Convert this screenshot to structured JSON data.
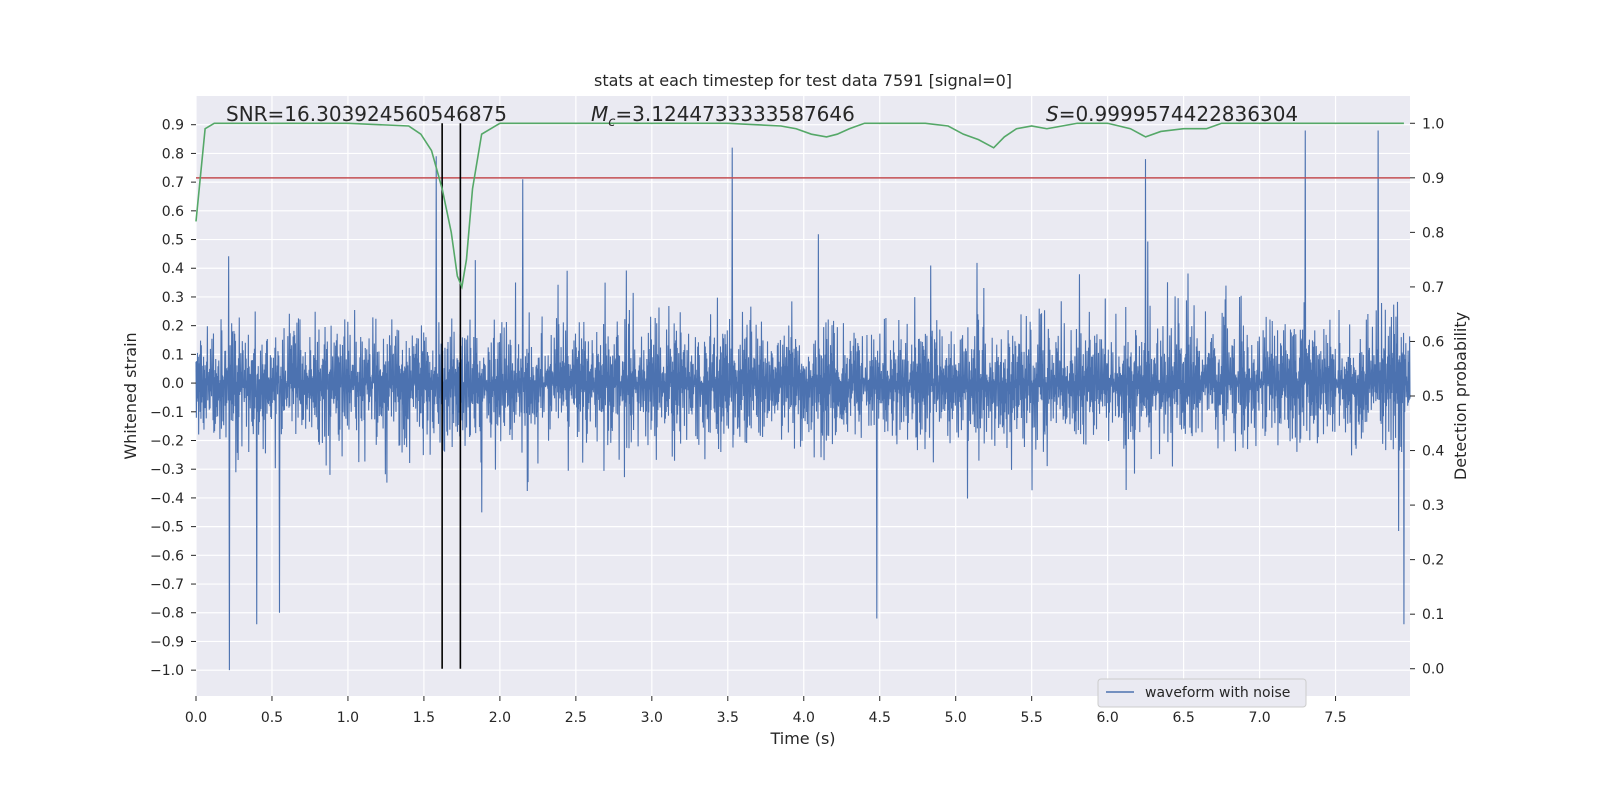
{
  "chart_data": {
    "type": "line",
    "title": "stats at each timestep for test data 7591 [signal=0]",
    "xlabel": "Time (s)",
    "ylabel": "Whitened strain",
    "y2label": "Detection probability",
    "xlim": [
      0.0,
      7.99
    ],
    "ylim": [
      -1.09,
      1.0
    ],
    "y2lim": [
      -0.05,
      1.05
    ],
    "x_ticks": [
      "0.0",
      "0.5",
      "1.0",
      "1.5",
      "2.0",
      "2.5",
      "3.0",
      "3.5",
      "4.0",
      "4.5",
      "5.0",
      "5.5",
      "6.0",
      "6.5",
      "7.0",
      "7.5"
    ],
    "y_ticks": [
      "0.9",
      "0.8",
      "0.7",
      "0.6",
      "0.5",
      "0.4",
      "0.3",
      "0.2",
      "0.1",
      "0.0",
      "−0.1",
      "−0.2",
      "−0.3",
      "−0.4",
      "−0.5",
      "−0.6",
      "−0.7",
      "−0.8",
      "−0.9",
      "−1.0"
    ],
    "y2_ticks": [
      "1.0",
      "0.9",
      "0.8",
      "0.7",
      "0.6",
      "0.5",
      "0.4",
      "0.3",
      "0.2",
      "0.1",
      "0.0"
    ],
    "grid": true,
    "legend_position": "lower-right",
    "annotations": {
      "snr": "SNR=16.303924560546875",
      "mc_prefix": "M",
      "mc_sub": "c",
      "mc_value": "=3.1244733333587646",
      "s_prefix": "S",
      "s_value": "=0.9999574422836304"
    },
    "series": [
      {
        "name": "waveform with noise",
        "kind": "dense-noise",
        "color": "#4c72b0",
        "approx_envelope": [
          -0.55,
          0.55
        ],
        "peaks": [
          {
            "x": 0.22,
            "y": -1.0
          },
          {
            "x": 0.4,
            "y": -0.84
          },
          {
            "x": 0.55,
            "y": -0.8
          },
          {
            "x": 1.58,
            "y": 0.79
          },
          {
            "x": 2.15,
            "y": 0.71
          },
          {
            "x": 3.53,
            "y": 0.82
          },
          {
            "x": 4.48,
            "y": -0.82
          },
          {
            "x": 6.25,
            "y": 0.78
          },
          {
            "x": 7.3,
            "y": 0.88
          },
          {
            "x": 7.78,
            "y": 0.88
          },
          {
            "x": 7.95,
            "y": -0.84
          }
        ]
      },
      {
        "kind": "detection-probability",
        "color": "#55a868",
        "x": [
          0.0,
          0.06,
          0.12,
          0.3,
          1.0,
          1.4,
          1.48,
          1.55,
          1.62,
          1.68,
          1.72,
          1.75,
          1.78,
          1.82,
          1.88,
          2.0,
          2.5,
          3.0,
          3.5,
          3.85,
          3.95,
          4.05,
          4.15,
          4.22,
          4.3,
          4.4,
          4.5,
          4.8,
          4.95,
          5.05,
          5.15,
          5.25,
          5.32,
          5.4,
          5.5,
          5.6,
          5.7,
          5.8,
          6.0,
          6.15,
          6.25,
          6.35,
          6.5,
          6.65,
          6.75,
          7.0,
          7.5,
          7.95
        ],
        "y": [
          0.82,
          0.99,
          1.0,
          1.0,
          1.0,
          0.995,
          0.98,
          0.95,
          0.88,
          0.8,
          0.72,
          0.7,
          0.75,
          0.88,
          0.98,
          1.0,
          1.0,
          1.0,
          1.0,
          0.995,
          0.99,
          0.98,
          0.975,
          0.98,
          0.99,
          1.0,
          1.0,
          1.0,
          0.995,
          0.98,
          0.97,
          0.955,
          0.975,
          0.99,
          0.995,
          0.99,
          0.995,
          1.0,
          1.0,
          0.99,
          0.975,
          0.985,
          0.99,
          0.99,
          1.0,
          1.0,
          1.0,
          1.0
        ]
      }
    ],
    "threshold_line": {
      "y2": 0.9,
      "color": "#c44e52"
    },
    "vertical_lines": {
      "x": [
        1.62,
        1.74
      ],
      "color": "#000000"
    }
  }
}
